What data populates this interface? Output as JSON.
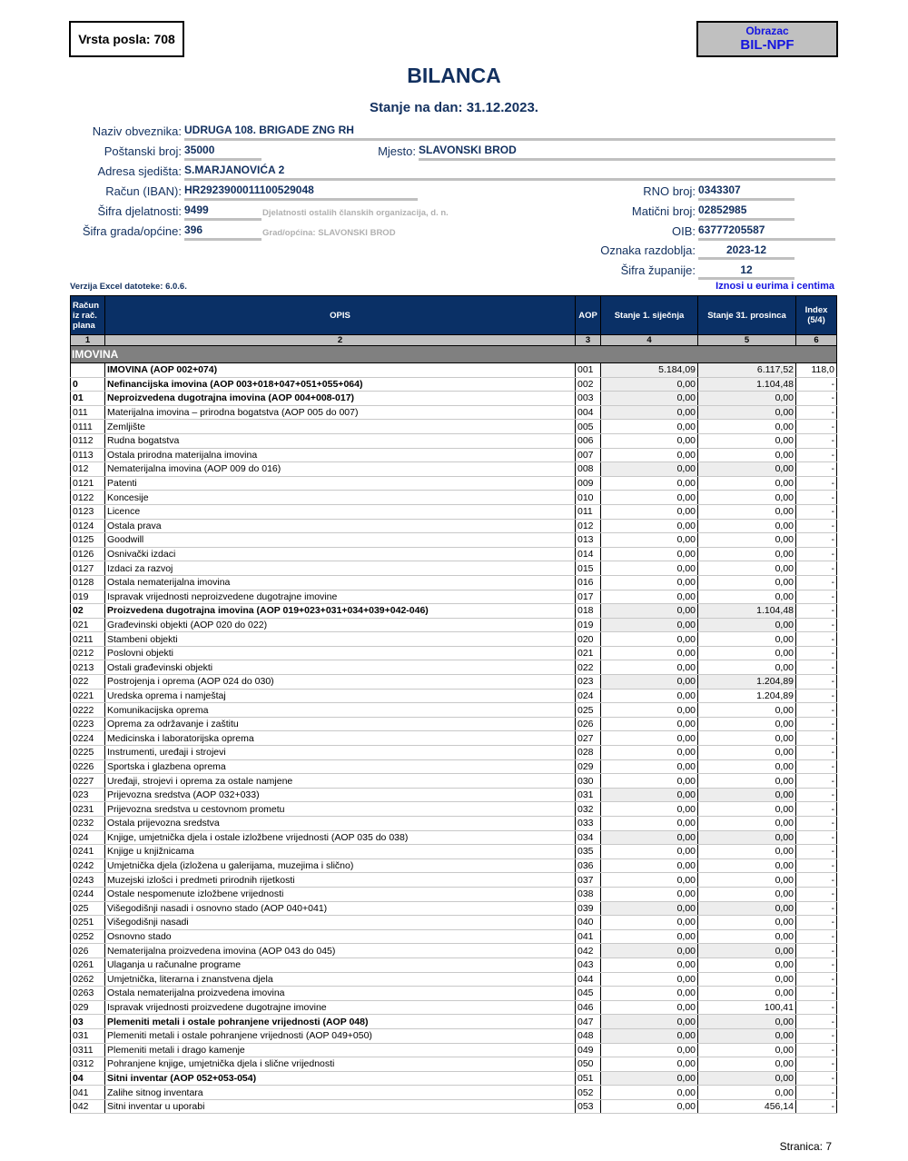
{
  "vrsta_posla": "Vrsta posla: 708",
  "obrazac": {
    "label": "Obrazac",
    "code": "BIL-NPF"
  },
  "title": "BILANCA",
  "subtitle": "Stanje na dan: 31.12.2023.",
  "fields": {
    "naziv": {
      "label": "Naziv obveznika:",
      "value": "UDRUGA 108. BRIGADE ZNG RH"
    },
    "postanski": {
      "label": "Poštanski broj:",
      "value": "35000"
    },
    "mjesto": {
      "label": "Mjesto:",
      "value": "SLAVONSKI BROD"
    },
    "adresa": {
      "label": "Adresa sjedišta:",
      "value": "S.MARJANOVIĆA 2"
    },
    "racun": {
      "label": "Račun (IBAN):",
      "value": "HR2923900011100529048"
    },
    "djelatnost": {
      "label": "Šifra djelatnosti:",
      "value": "9499",
      "hint": "Djelatnosti ostalih članskih organizacija, d. n."
    },
    "grad": {
      "label": "Šifra grada/općine:",
      "value": "396",
      "hint": "Grad/općina: SLAVONSKI BROD"
    },
    "rno": {
      "label": "RNO broj:",
      "value": "0343307"
    },
    "maticni": {
      "label": "Matični broj:",
      "value": "02852985"
    },
    "oib": {
      "label": "OIB:",
      "value": "63777205587"
    },
    "razdoblje": {
      "label": "Oznaka razdoblja:",
      "value": "2023-12"
    },
    "zupanija": {
      "label": "Šifra županije:",
      "value": "12"
    }
  },
  "version": "Verzija Excel datoteke: 6.0.6.",
  "currency_note": "Iznosi u eurima i centima",
  "table": {
    "headers": [
      "Račun iz rač. plana",
      "OPIS",
      "AOP",
      "Stanje 1. siječnja",
      "Stanje 31. prosinca",
      "Index (5/4)"
    ],
    "col_numbers": [
      "1",
      "2",
      "3",
      "4",
      "5",
      "6"
    ],
    "section": "IMOVINA",
    "rows": [
      [
        "",
        "IMOVINA (AOP 002+074)",
        "001",
        "5.184,09",
        "6.117,52",
        "118,0",
        1
      ],
      [
        "0",
        "Nefinancijska imovina (AOP 003+018+047+051+055+064)",
        "002",
        "0,00",
        "1.104,48",
        "-",
        1
      ],
      [
        "01",
        "Neproizvedena dugotrajna imovina (AOP 004+008-017)",
        "003",
        "0,00",
        "0,00",
        "-",
        1
      ],
      [
        "011",
        "Materijalna imovina – prirodna bogatstva (AOP 005 do 007)",
        "004",
        "0,00",
        "0,00",
        "-",
        0
      ],
      [
        "0111",
        "Zemljište",
        "005",
        "0,00",
        "0,00",
        "-",
        0
      ],
      [
        "0112",
        "Rudna bogatstva",
        "006",
        "0,00",
        "0,00",
        "-",
        0
      ],
      [
        "0113",
        "Ostala prirodna materijalna imovina",
        "007",
        "0,00",
        "0,00",
        "-",
        0
      ],
      [
        "012",
        "Nematerijalna imovina (AOP 009 do 016)",
        "008",
        "0,00",
        "0,00",
        "-",
        0
      ],
      [
        "0121",
        "Patenti",
        "009",
        "0,00",
        "0,00",
        "-",
        0
      ],
      [
        "0122",
        "Koncesije",
        "010",
        "0,00",
        "0,00",
        "-",
        0
      ],
      [
        "0123",
        "Licence",
        "011",
        "0,00",
        "0,00",
        "-",
        0
      ],
      [
        "0124",
        "Ostala prava",
        "012",
        "0,00",
        "0,00",
        "-",
        0
      ],
      [
        "0125",
        "Goodwill",
        "013",
        "0,00",
        "0,00",
        "-",
        0
      ],
      [
        "0126",
        "Osnivački izdaci",
        "014",
        "0,00",
        "0,00",
        "-",
        0
      ],
      [
        "0127",
        "Izdaci za razvoj",
        "015",
        "0,00",
        "0,00",
        "-",
        0
      ],
      [
        "0128",
        "Ostala nematerijalna imovina",
        "016",
        "0,00",
        "0,00",
        "-",
        0
      ],
      [
        "019",
        "Ispravak vrijednosti neproizvedene dugotrajne imovine",
        "017",
        "0,00",
        "0,00",
        "-",
        0
      ],
      [
        "02",
        "Proizvedena dugotrajna imovina (AOP 019+023+031+034+039+042-046)",
        "018",
        "0,00",
        "1.104,48",
        "-",
        1
      ],
      [
        "021",
        "Građevinski objekti (AOP 020 do 022)",
        "019",
        "0,00",
        "0,00",
        "-",
        0
      ],
      [
        "0211",
        "Stambeni objekti",
        "020",
        "0,00",
        "0,00",
        "-",
        0
      ],
      [
        "0212",
        "Poslovni objekti",
        "021",
        "0,00",
        "0,00",
        "-",
        0
      ],
      [
        "0213",
        "Ostali građevinski objekti",
        "022",
        "0,00",
        "0,00",
        "-",
        0
      ],
      [
        "022",
        "Postrojenja i oprema (AOP 024 do 030)",
        "023",
        "0,00",
        "1.204,89",
        "-",
        0
      ],
      [
        "0221",
        "Uredska oprema i namještaj",
        "024",
        "0,00",
        "1.204,89",
        "-",
        0
      ],
      [
        "0222",
        "Komunikacijska oprema",
        "025",
        "0,00",
        "0,00",
        "-",
        0
      ],
      [
        "0223",
        "Oprema za održavanje i zaštitu",
        "026",
        "0,00",
        "0,00",
        "-",
        0
      ],
      [
        "0224",
        "Medicinska i laboratorijska oprema",
        "027",
        "0,00",
        "0,00",
        "-",
        0
      ],
      [
        "0225",
        "Instrumenti, uređaji i strojevi",
        "028",
        "0,00",
        "0,00",
        "-",
        0
      ],
      [
        "0226",
        "Sportska i glazbena oprema",
        "029",
        "0,00",
        "0,00",
        "-",
        0
      ],
      [
        "0227",
        "Uređaji, strojevi i oprema za ostale namjene",
        "030",
        "0,00",
        "0,00",
        "-",
        0
      ],
      [
        "023",
        "Prijevozna sredstva (AOP 032+033)",
        "031",
        "0,00",
        "0,00",
        "-",
        0
      ],
      [
        "0231",
        "Prijevozna sredstva u cestovnom prometu",
        "032",
        "0,00",
        "0,00",
        "-",
        0
      ],
      [
        "0232",
        "Ostala prijevozna sredstva",
        "033",
        "0,00",
        "0,00",
        "-",
        0
      ],
      [
        "024",
        "Knjige, umjetnička djela i ostale izložbene vrijednosti (AOP 035 do 038)",
        "034",
        "0,00",
        "0,00",
        "-",
        0
      ],
      [
        "0241",
        "Knjige u knjižnicama",
        "035",
        "0,00",
        "0,00",
        "-",
        0
      ],
      [
        "0242",
        "Umjetnička djela (izložena u galerijama, muzejima i slično)",
        "036",
        "0,00",
        "0,00",
        "-",
        0
      ],
      [
        "0243",
        "Muzejski izlošci i predmeti prirodnih rijetkosti",
        "037",
        "0,00",
        "0,00",
        "-",
        0
      ],
      [
        "0244",
        "Ostale nespomenute izložbene vrijednosti",
        "038",
        "0,00",
        "0,00",
        "-",
        0
      ],
      [
        "025",
        "Višegodišnji nasadi i osnovno stado (AOP 040+041)",
        "039",
        "0,00",
        "0,00",
        "-",
        0
      ],
      [
        "0251",
        "Višegodišnji nasadi",
        "040",
        "0,00",
        "0,00",
        "-",
        0
      ],
      [
        "0252",
        "Osnovno stado",
        "041",
        "0,00",
        "0,00",
        "-",
        0
      ],
      [
        "026",
        "Nematerijalna proizvedena imovina (AOP 043 do 045)",
        "042",
        "0,00",
        "0,00",
        "-",
        0
      ],
      [
        "0261",
        "Ulaganja u računalne programe",
        "043",
        "0,00",
        "0,00",
        "-",
        0
      ],
      [
        "0262",
        "Umjetnička, literarna i znanstvena djela",
        "044",
        "0,00",
        "0,00",
        "-",
        0
      ],
      [
        "0263",
        "Ostala nematerijalna proizvedena imovina",
        "045",
        "0,00",
        "0,00",
        "-",
        0
      ],
      [
        "029",
        "Ispravak vrijednosti proizvedene dugotrajne imovine",
        "046",
        "0,00",
        "100,41",
        "-",
        0
      ],
      [
        "03",
        "Plemeniti metali i ostale pohranjene vrijednosti (AOP 048)",
        "047",
        "0,00",
        "0,00",
        "-",
        1
      ],
      [
        "031",
        "Plemeniti metali i ostale pohranjene vrijednosti (AOP 049+050)",
        "048",
        "0,00",
        "0,00",
        "-",
        0
      ],
      [
        "0311",
        "Plemeniti metali i drago kamenje",
        "049",
        "0,00",
        "0,00",
        "-",
        0
      ],
      [
        "0312",
        "Pohranjene knjige, umjetnička djela i slične vrijednosti",
        "050",
        "0,00",
        "0,00",
        "-",
        0
      ],
      [
        "04",
        "Sitni inventar (AOP 052+053-054)",
        "051",
        "0,00",
        "0,00",
        "-",
        1
      ],
      [
        "041",
        "Zalihe sitnog inventara",
        "052",
        "0,00",
        "0,00",
        "-",
        0
      ],
      [
        "042",
        "Sitni inventar u uporabi",
        "053",
        "0,00",
        "456,14",
        "-",
        0
      ]
    ]
  },
  "footer": "Stranica: 7"
}
